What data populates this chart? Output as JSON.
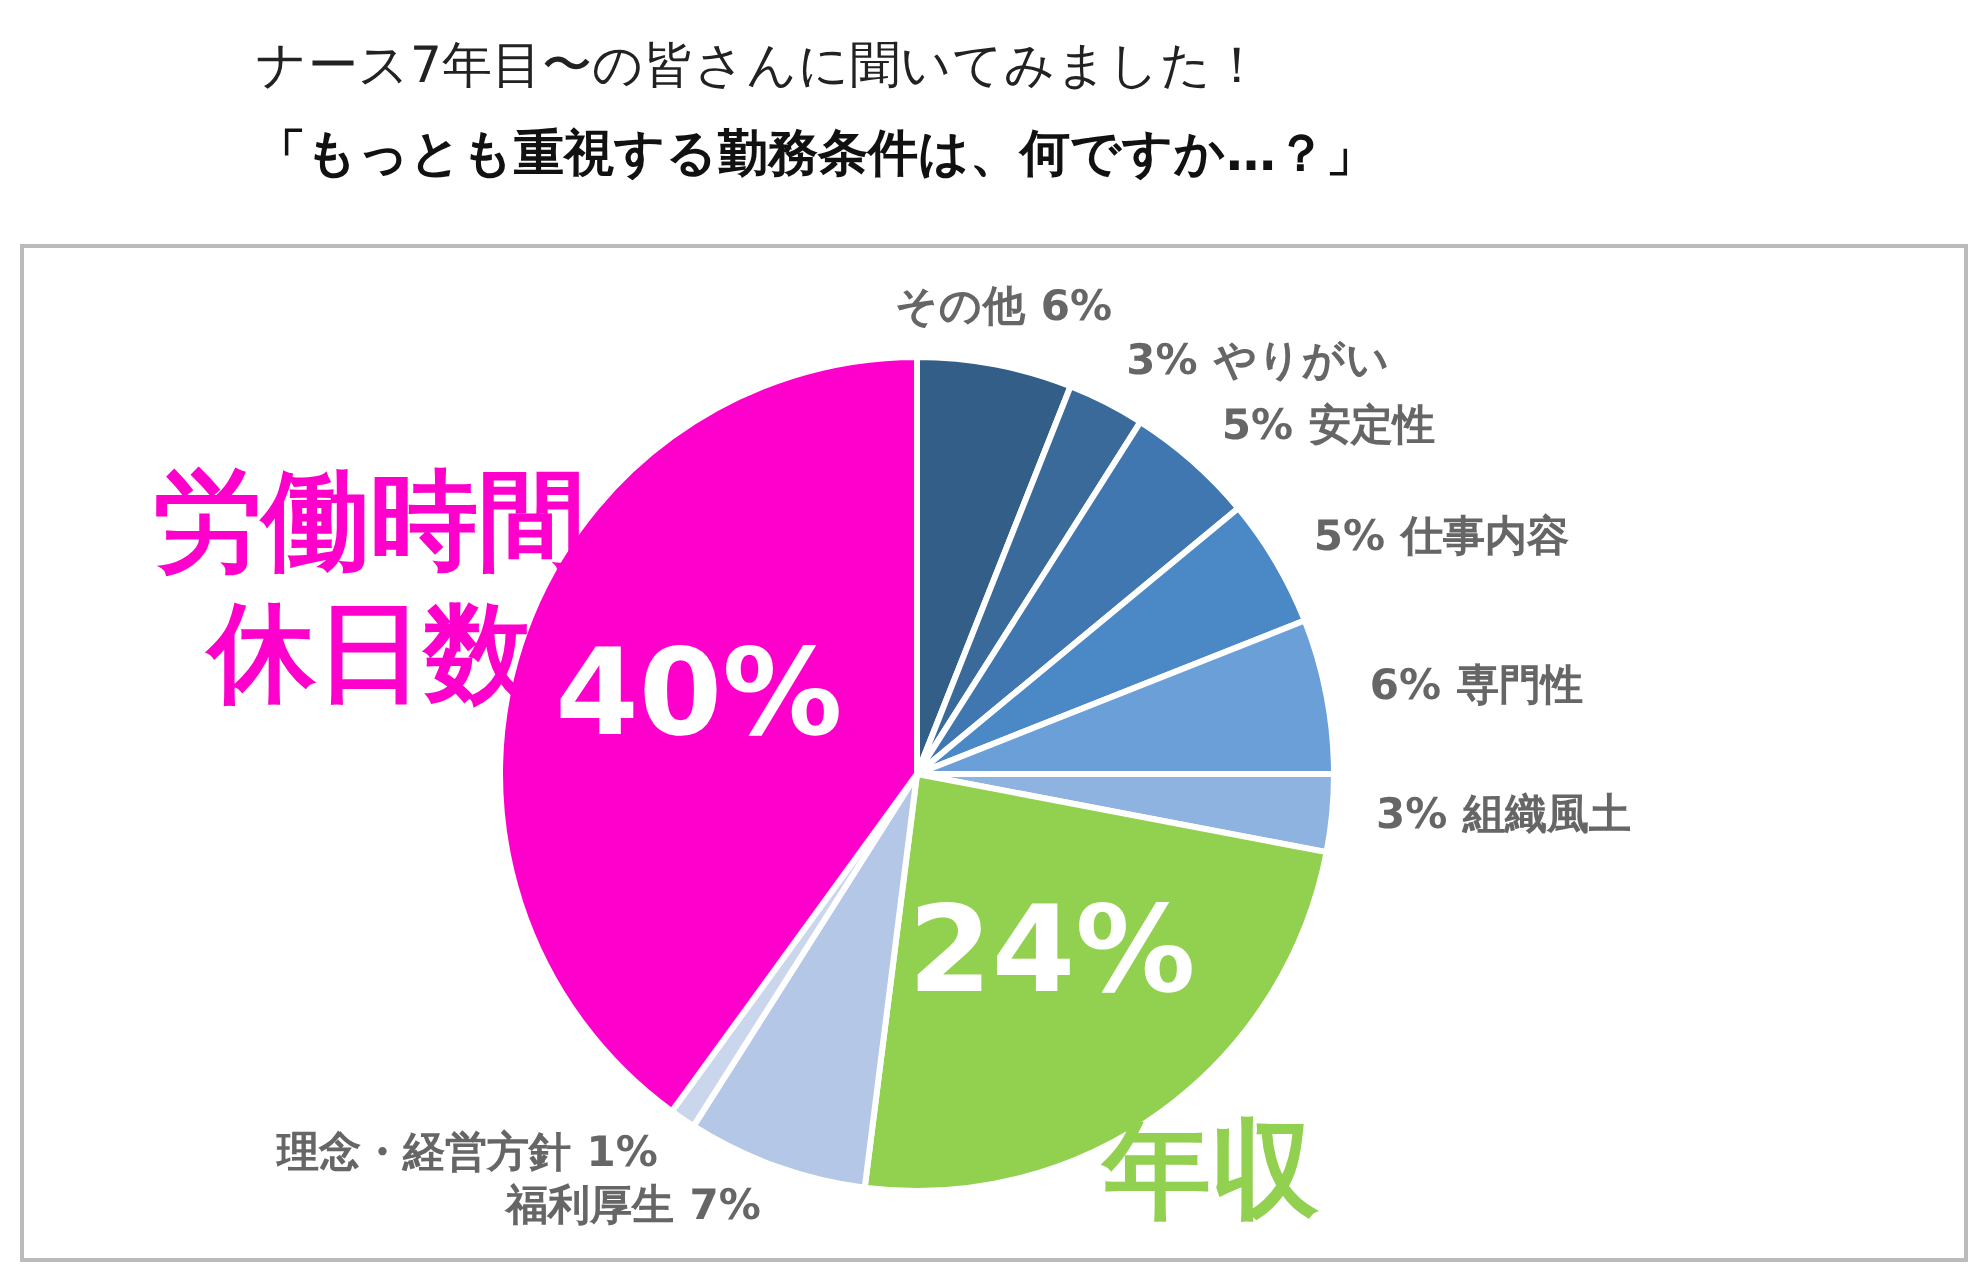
{
  "chart_data": {
    "type": "pie",
    "title": "ナース7年目〜の皆さんに聞いてみました！",
    "subtitle": "「もっとも重視する勤務条件は、何ですか…？」",
    "categories": [
      "その他",
      "やりがい",
      "安定性",
      "仕事内容",
      "専門性",
      "組織風土",
      "年収",
      "福利厚生",
      "理念・経営方針",
      "労働時間休日数"
    ],
    "values": [
      6,
      3,
      5,
      5,
      6,
      3,
      24,
      7,
      1,
      40
    ],
    "value_labels": [
      "6%",
      "3%",
      "5%",
      "5%",
      "6%",
      "3%",
      "24%",
      "7%",
      "1%",
      "40%"
    ],
    "colors": [
      "#335e87",
      "#3a6a9a",
      "#4077b0",
      "#4a88c6",
      "#6b9fd8",
      "#8fb3e0",
      "#92d050",
      "#b4c7e7",
      "#c9d6ec",
      "#ff00cc"
    ],
    "legend": false
  }
}
